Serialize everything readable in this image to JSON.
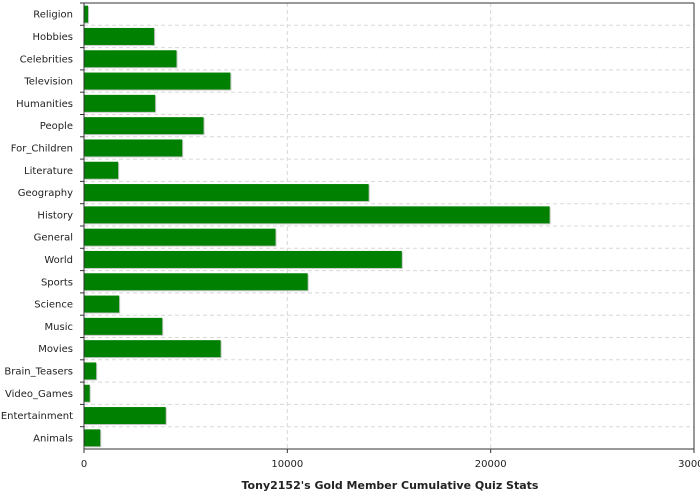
{
  "chart_data": {
    "type": "bar",
    "orientation": "horizontal",
    "title": "",
    "xlabel": "Tony2152's Gold Member Cumulative Quiz Stats",
    "ylabel": "",
    "xlim": [
      0,
      30000
    ],
    "x_ticks": [
      "0",
      "10000",
      "20000",
      "30000"
    ],
    "x_tick_values": [
      0,
      10000,
      20000,
      30000
    ],
    "grid": true,
    "bar_color": "#008000",
    "bar_shadow_color": "#c8c8c8",
    "categories": [
      "Religion",
      "Hobbies",
      "Celebrities",
      "Television",
      "Humanities",
      "People",
      "For_Children",
      "Literature",
      "Geography",
      "History",
      "General",
      "World",
      "Sports",
      "Science",
      "Music",
      "Movies",
      "Brain_Teasers",
      "Video_Games",
      "Entertainment",
      "Animals"
    ],
    "values": [
      200,
      3450,
      4550,
      7200,
      3500,
      5880,
      4830,
      1680,
      14000,
      22900,
      9420,
      15630,
      11000,
      1730,
      3850,
      6720,
      600,
      280,
      4020,
      800
    ]
  }
}
